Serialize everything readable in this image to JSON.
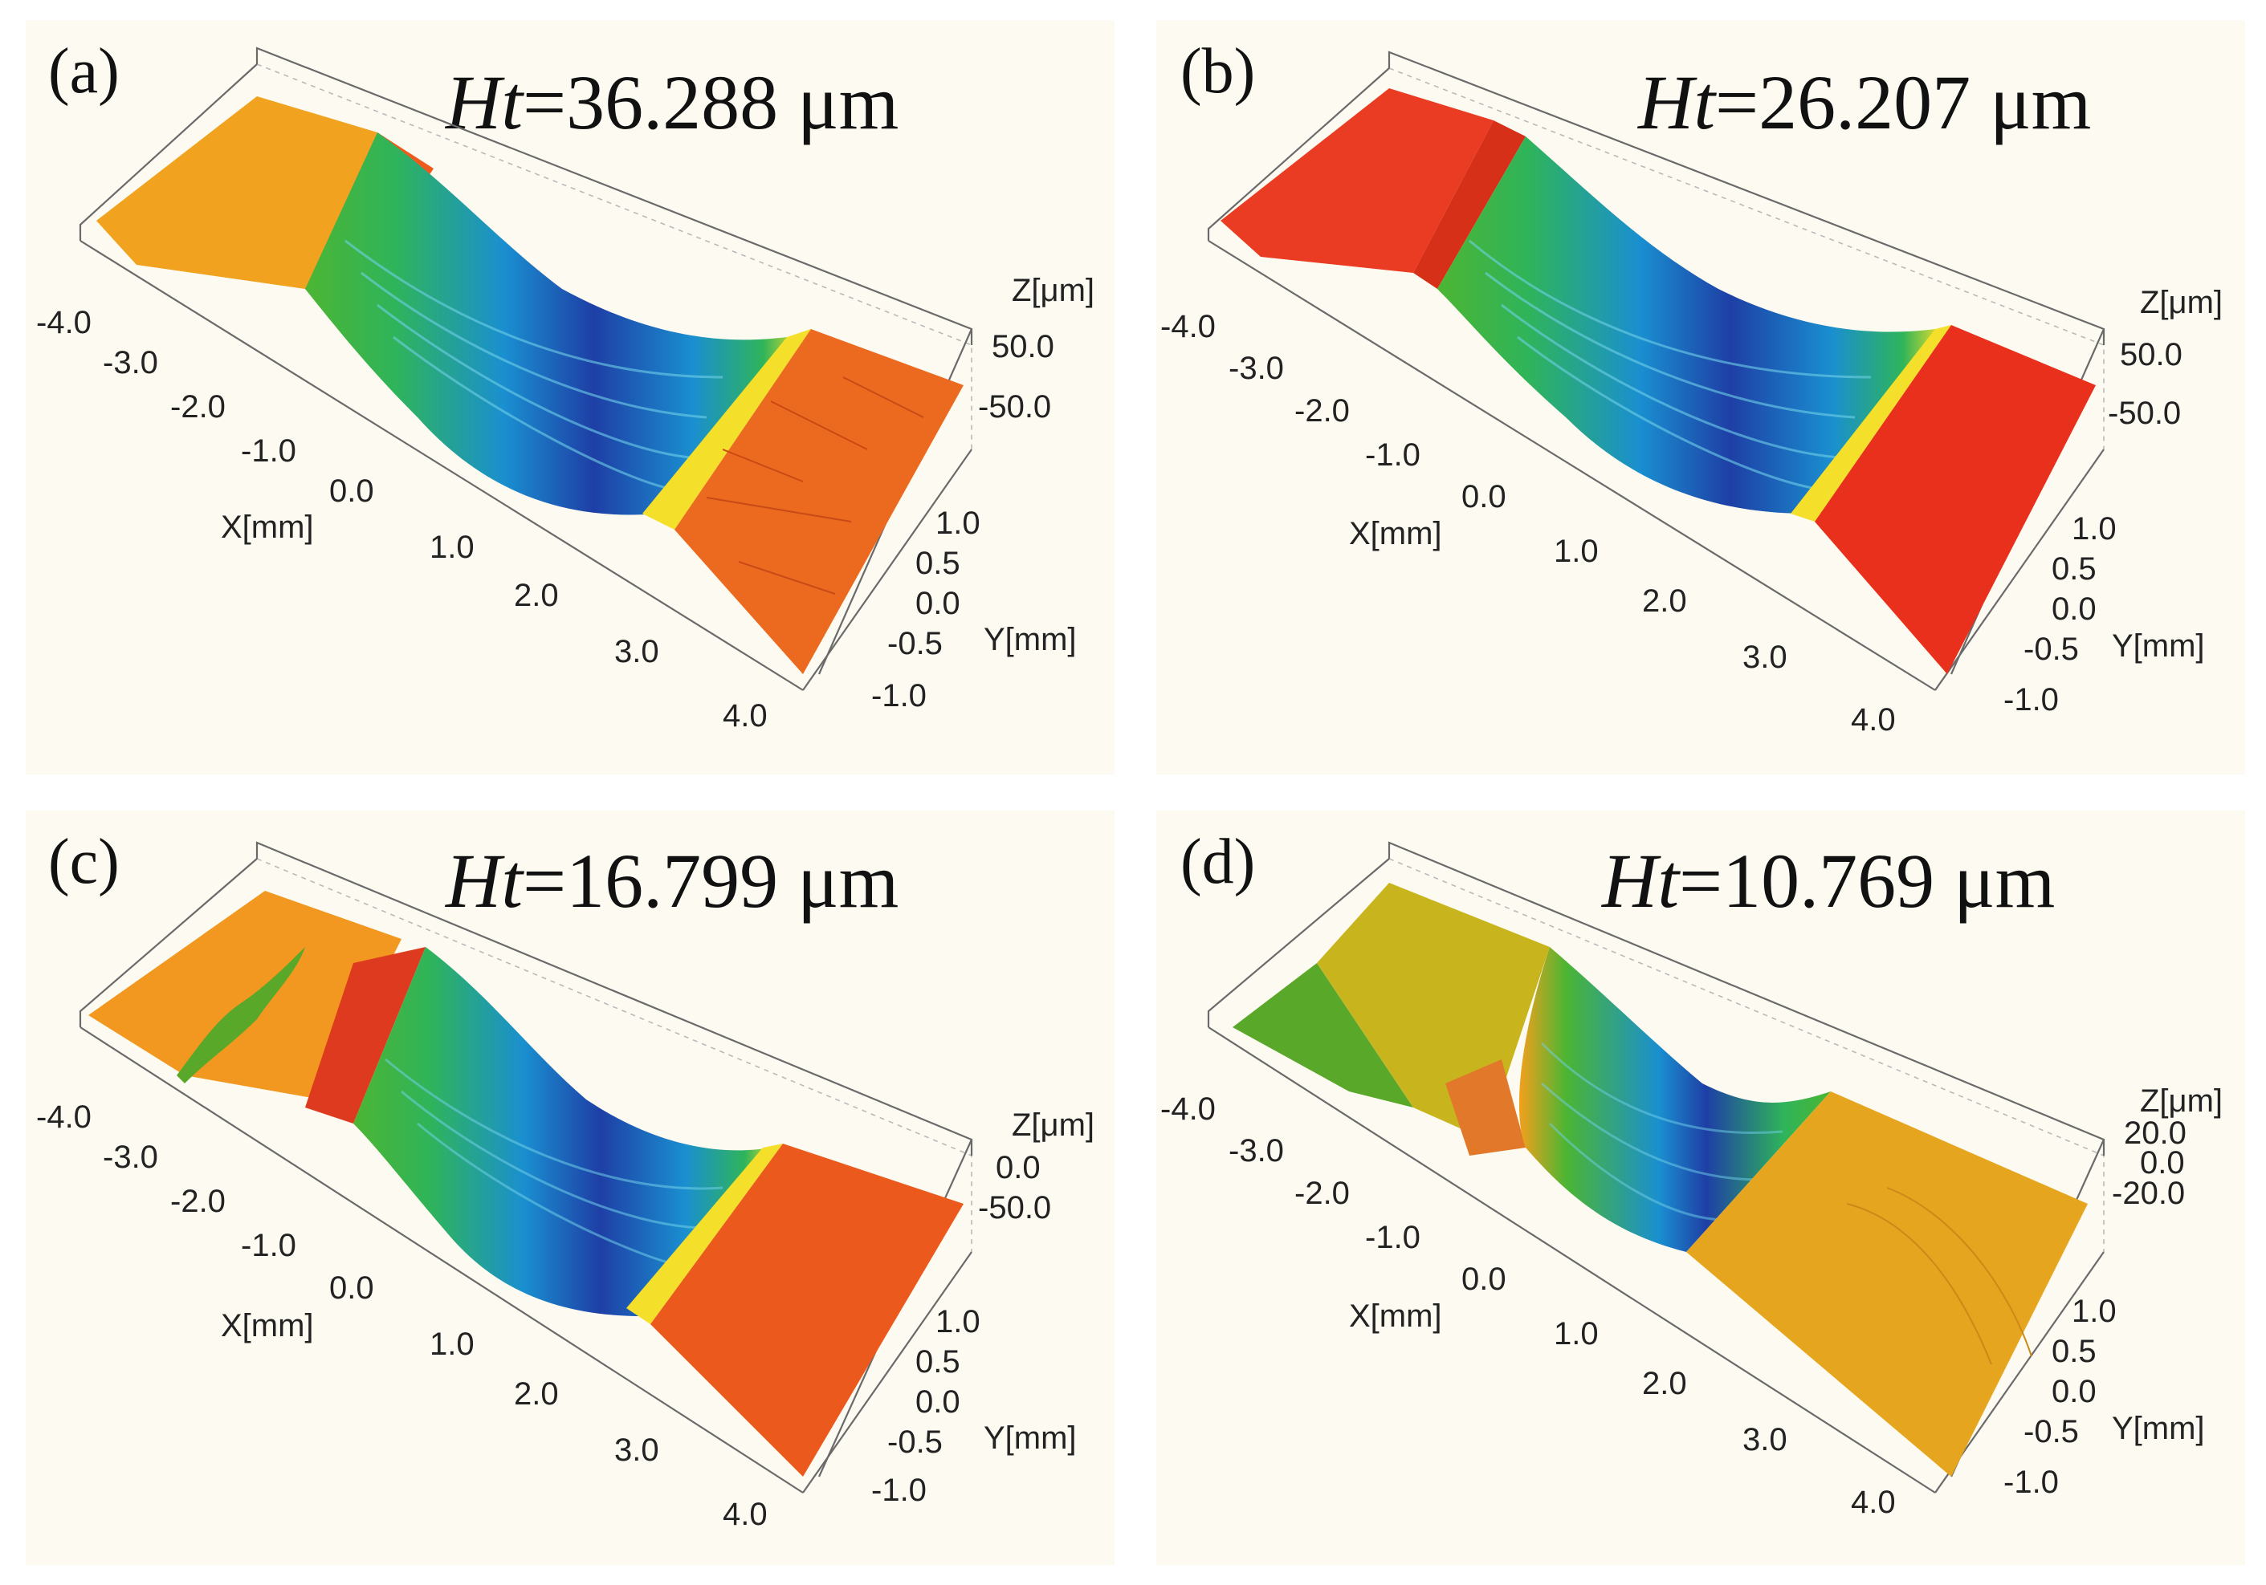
{
  "figure": {
    "background_color": "#fdfbf1",
    "colormap": [
      "#1e3fa6",
      "#1a8fd0",
      "#2fb45a",
      "#4cb533",
      "#f4e02a",
      "#f3a01c",
      "#ef6e1a",
      "#e8321a"
    ]
  },
  "chart_data": [
    {
      "type": "surface3d",
      "panel_label": "(a)",
      "title_symbol": "Ht",
      "title_value": "=36.288 μm",
      "x_label": "X[mm]",
      "y_label": "Y[mm]",
      "z_label": "Z[μm]",
      "x_ticks": [
        "-4.0",
        "-3.0",
        "-2.0",
        "-1.0",
        "0.0",
        "1.0",
        "2.0",
        "3.0",
        "4.0"
      ],
      "y_ticks": [
        "1.0",
        "0.5",
        "0.0",
        "-0.5",
        "-1.0"
      ],
      "z_ticks": [
        "50.0",
        "-50.0"
      ],
      "xlim": [
        -4.0,
        4.0
      ],
      "ylim": [
        -1.0,
        1.0
      ],
      "zlim": [
        -50.0,
        50.0
      ],
      "profile": {
        "groove_start_x": -2.6,
        "groove_end_x": 1.6,
        "depth_um": 36.288,
        "left_surface_color": "#f1a21f",
        "right_surface_color": "#ec6a1f",
        "rim_color": "#ef5a1c"
      }
    },
    {
      "type": "surface3d",
      "panel_label": "(b)",
      "title_symbol": "Ht",
      "title_value": "=26.207 μm",
      "x_label": "X[mm]",
      "y_label": "Y[mm]",
      "z_label": "Z[μm]",
      "x_ticks": [
        "-4.0",
        "-3.0",
        "-2.0",
        "-1.0",
        "0.0",
        "1.0",
        "2.0",
        "3.0",
        "4.0"
      ],
      "y_ticks": [
        "1.0",
        "0.5",
        "0.0",
        "-0.5",
        "-1.0"
      ],
      "z_ticks": [
        "50.0",
        "-50.0"
      ],
      "xlim": [
        -4.0,
        4.0
      ],
      "ylim": [
        -1.0,
        1.0
      ],
      "zlim": [
        -50.0,
        50.0
      ],
      "profile": {
        "groove_start_x": -2.5,
        "groove_end_x": 1.8,
        "depth_um": 26.207,
        "left_surface_color": "#ea3c22",
        "right_surface_color": "#e8301c",
        "rim_color": "#e3321c"
      }
    },
    {
      "type": "surface3d",
      "panel_label": "(c)",
      "title_symbol": "Ht",
      "title_value": "=16.799 μm",
      "x_label": "X[mm]",
      "y_label": "Y[mm]",
      "z_label": "Z[μm]",
      "x_ticks": [
        "-4.0",
        "-3.0",
        "-2.0",
        "-1.0",
        "0.0",
        "1.0",
        "2.0",
        "3.0",
        "4.0"
      ],
      "y_ticks": [
        "1.0",
        "0.5",
        "0.0",
        "-0.5",
        "-1.0"
      ],
      "z_ticks": [
        "0.0",
        "-50.0"
      ],
      "xlim": [
        -4.0,
        4.0
      ],
      "ylim": [
        -1.0,
        1.0
      ],
      "zlim": [
        -50.0,
        0.0
      ],
      "profile": {
        "groove_start_x": -2.4,
        "groove_end_x": 1.4,
        "depth_um": 16.799,
        "left_surface_color": "#f2971f",
        "right_surface_color": "#ec591d",
        "rim_color": "#de3a1f"
      }
    },
    {
      "type": "surface3d",
      "panel_label": "(d)",
      "title_symbol": "Ht",
      "title_value": "=10.769 μm",
      "x_label": "X[mm]",
      "y_label": "Y[mm]",
      "z_label": "Z[μm]",
      "x_ticks": [
        "-4.0",
        "-3.0",
        "-2.0",
        "-1.0",
        "0.0",
        "1.0",
        "2.0",
        "3.0",
        "4.0"
      ],
      "y_ticks": [
        "1.0",
        "0.5",
        "0.0",
        "-0.5",
        "-1.0"
      ],
      "z_ticks": [
        "20.0",
        "0.0",
        "-20.0"
      ],
      "xlim": [
        -4.0,
        4.0
      ],
      "ylim": [
        -1.0,
        1.0
      ],
      "zlim": [
        -20.0,
        20.0
      ],
      "profile": {
        "groove_start_x": -1.9,
        "groove_end_x": 0.9,
        "depth_um": 10.769,
        "left_surface_color": "#c8b51e",
        "right_surface_color": "#e6a51f",
        "rim_color": "#e2792a"
      }
    }
  ]
}
